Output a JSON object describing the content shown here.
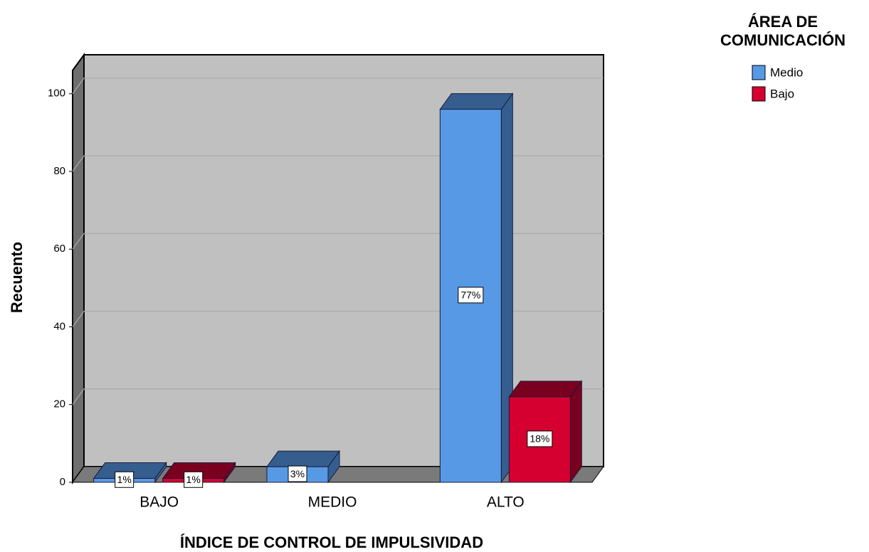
{
  "chart_data": {
    "type": "bar3d",
    "x_label": "ÍNDICE DE CONTROL DE IMPULSIVIDAD",
    "y_label": "Recuento",
    "legend_title": [
      "ÁREA DE",
      "COMUNICACIÓN"
    ],
    "categories": [
      "BAJO",
      "MEDIO",
      "ALTO"
    ],
    "series": [
      {
        "name": "Medio",
        "color": "#5899e6",
        "shade": "#355e8f",
        "values": [
          1,
          4,
          96
        ],
        "percent_labels": [
          "1%",
          "3%",
          "77%"
        ]
      },
      {
        "name": "Bajo",
        "color": "#d5002f",
        "shade": "#7a0020",
        "values": [
          1,
          null,
          22
        ],
        "percent_labels": [
          "1%",
          null,
          "18%"
        ]
      }
    ],
    "ylim": [
      0,
      106
    ],
    "yticks": [
      0,
      20,
      40,
      60,
      80,
      100
    ],
    "grid": true,
    "legend": "top-right"
  }
}
